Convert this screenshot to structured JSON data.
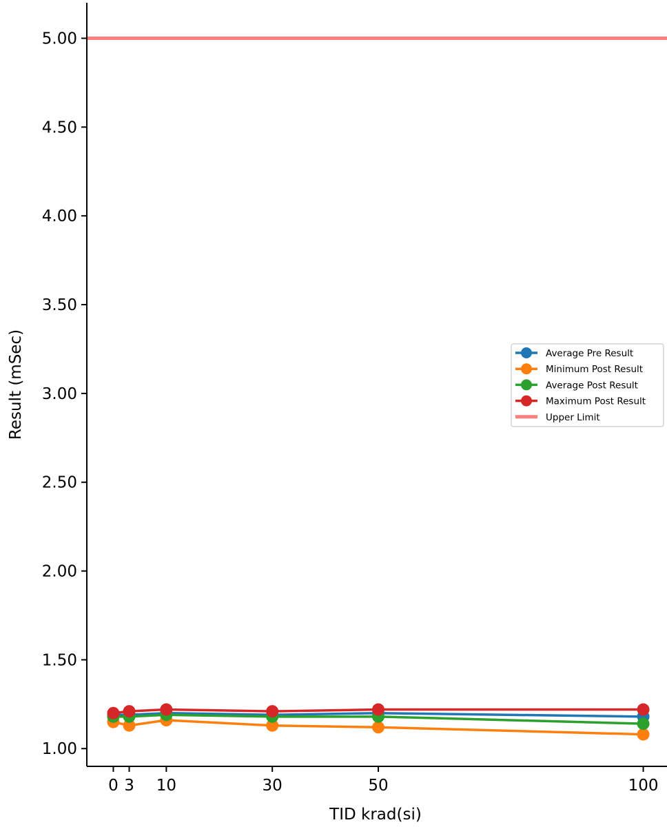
{
  "chart_data": {
    "type": "line",
    "title": "",
    "xlabel": "TID krad(si)",
    "ylabel": "Result (mSec)",
    "xlim": [
      -5,
      105
    ],
    "ylim": [
      0.9,
      5.2
    ],
    "grid": false,
    "legend_position": "center-right",
    "x": [
      0,
      3,
      10,
      30,
      50,
      100
    ],
    "x_ticks": [
      0,
      3,
      10,
      30,
      50,
      100
    ],
    "x_tick_labels": [
      "0",
      "3",
      "10",
      "30",
      "50",
      "100"
    ],
    "y_ticks": [
      1.0,
      1.5,
      2.0,
      2.5,
      3.0,
      3.5,
      4.0,
      4.5,
      5.0
    ],
    "y_tick_labels": [
      "1.00",
      "1.50",
      "2.00",
      "2.50",
      "3.00",
      "3.50",
      "4.00",
      "4.50",
      "5.00"
    ],
    "series": [
      {
        "name": "Average Pre Result",
        "color": "#1f77b4",
        "marker": "circle",
        "values": [
          1.19,
          1.19,
          1.2,
          1.19,
          1.2,
          1.18
        ]
      },
      {
        "name": "Minimum Post Result",
        "color": "#ff7f0e",
        "marker": "circle",
        "values": [
          1.15,
          1.13,
          1.16,
          1.13,
          1.12,
          1.08
        ]
      },
      {
        "name": "Average Post Result",
        "color": "#2ca02c",
        "marker": "circle",
        "values": [
          1.18,
          1.18,
          1.19,
          1.18,
          1.18,
          1.14
        ]
      },
      {
        "name": "Maximum Post Result",
        "color": "#d62728",
        "marker": "circle",
        "values": [
          1.2,
          1.21,
          1.22,
          1.21,
          1.22,
          1.22
        ]
      }
    ],
    "reference_lines": [
      {
        "name": "Upper Limit",
        "color": "#ff7f7f",
        "y": 5.0
      }
    ]
  }
}
